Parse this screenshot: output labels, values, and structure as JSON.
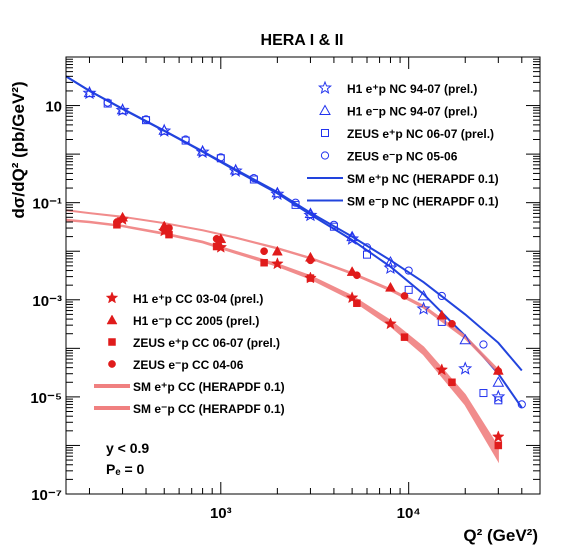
{
  "chart_data": {
    "type": "scatter",
    "title": "HERA I & II",
    "xlabel": "Q² (GeV²)",
    "ylabel": "dσ/dQ² (pb/GeV²)",
    "xscale": "log",
    "yscale": "log",
    "xlim": [
      150,
      50000
    ],
    "ylim": [
      1e-07,
      100
    ],
    "x_ticks": [
      {
        "value": 1000,
        "label": "10³"
      },
      {
        "value": 10000,
        "label": "10⁴"
      }
    ],
    "y_ticks": [
      {
        "value": 10,
        "label": "10"
      },
      {
        "value": 0.1,
        "label": "10⁻¹"
      },
      {
        "value": 0.001,
        "label": "10⁻³"
      },
      {
        "value": 1e-05,
        "label": "10⁻⁵"
      },
      {
        "value": 1e-07,
        "label": "10⁻⁷"
      }
    ],
    "legend_top": "top-right",
    "legend_bottom": "bottom-left",
    "annotations": [
      "y < 0.9",
      "Pₑ = 0"
    ],
    "series": [
      {
        "name": "H1 e⁺p NC 94-07 (prel.)",
        "group": "nc",
        "marker": "star-open",
        "color": "#2233ee",
        "x": [
          200,
          300,
          500,
          800,
          1200,
          2000,
          3000,
          5000,
          8000,
          12000,
          20000,
          30000
        ],
        "y": [
          18,
          8,
          3.0,
          1.1,
          0.45,
          0.15,
          0.055,
          0.018,
          0.0045,
          0.00065,
          3.8e-05,
          1e-05
        ]
      },
      {
        "name": "H1 e⁻p NC 94-07 (prel.)",
        "group": "nc",
        "marker": "triangle-open",
        "color": "#2233ee",
        "x": [
          200,
          300,
          500,
          800,
          1200,
          2000,
          3000,
          5000,
          8000,
          12000,
          20000,
          30000
        ],
        "y": [
          18.5,
          8.2,
          3.1,
          1.15,
          0.47,
          0.16,
          0.06,
          0.02,
          0.006,
          0.0012,
          0.00015,
          2e-05
        ]
      },
      {
        "name": "ZEUS e⁺p NC 06-07 (prel.)",
        "group": "nc",
        "marker": "square-open",
        "color": "#2233ee",
        "x": [
          250,
          400,
          650,
          1000,
          1500,
          2500,
          4000,
          6000,
          10000,
          15000,
          25000,
          30000
        ],
        "y": [
          11,
          5,
          1.9,
          0.82,
          0.3,
          0.09,
          0.032,
          0.0085,
          0.0016,
          0.00035,
          1.2e-05,
          8.5e-06
        ]
      },
      {
        "name": "ZEUS e⁻p NC 05-06",
        "group": "nc",
        "marker": "circle-open",
        "color": "#2233ee",
        "x": [
          250,
          400,
          650,
          1000,
          1500,
          2500,
          4000,
          6000,
          10000,
          15000,
          25000,
          40000
        ],
        "y": [
          11.5,
          5.2,
          2.0,
          0.86,
          0.32,
          0.1,
          0.035,
          0.012,
          0.004,
          0.0012,
          0.00012,
          7e-06
        ]
      },
      {
        "name": "SM e⁺p NC (HERAPDF 0.1)",
        "group": "nc",
        "marker": "line",
        "color": "#2244dd",
        "x": [
          150,
          200,
          300,
          500,
          800,
          1200,
          2000,
          3000,
          5000,
          8000,
          12000,
          20000,
          30000,
          40000
        ],
        "y": [
          40,
          20,
          8.5,
          3.0,
          1.12,
          0.46,
          0.155,
          0.057,
          0.017,
          0.0048,
          0.0013,
          0.00018,
          3e-05,
          6e-06
        ]
      },
      {
        "name": "SM e⁻p NC (HERAPDF 0.1)",
        "group": "nc",
        "marker": "line",
        "color": "#2244dd",
        "x": [
          150,
          200,
          300,
          500,
          800,
          1200,
          2000,
          3000,
          5000,
          8000,
          12000,
          20000,
          30000,
          40000
        ],
        "y": [
          40,
          20,
          8.6,
          3.05,
          1.15,
          0.48,
          0.165,
          0.062,
          0.02,
          0.0065,
          0.0023,
          0.0005,
          0.00013,
          3.5e-05
        ]
      },
      {
        "name": "H1 e⁺p CC 03-04 (prel.)",
        "group": "cc",
        "marker": "star-filled",
        "color": "#e01b1b",
        "x": [
          300,
          500,
          1000,
          2000,
          3000,
          5000,
          8000,
          15000,
          30000
        ],
        "y": [
          0.045,
          0.026,
          0.012,
          0.0055,
          0.0028,
          0.0011,
          0.00032,
          3.6e-05,
          1.5e-06
        ]
      },
      {
        "name": "H1 e⁻p CC 2005 (prel.)",
        "group": "cc",
        "marker": "triangle-filled",
        "color": "#e01b1b",
        "x": [
          300,
          500,
          1000,
          2000,
          3000,
          5000,
          8000,
          15000,
          30000
        ],
        "y": [
          0.05,
          0.033,
          0.018,
          0.01,
          0.0075,
          0.0038,
          0.0018,
          0.00048,
          3.5e-05
        ]
      },
      {
        "name": "ZEUS e⁺p CC 06-07 (prel.)",
        "group": "cc",
        "marker": "square-filled",
        "color": "#e01b1b",
        "x": [
          280,
          530,
          950,
          1700,
          3000,
          5300,
          9500,
          17000,
          30000
        ],
        "y": [
          0.035,
          0.022,
          0.0125,
          0.0058,
          0.0028,
          0.00085,
          0.00017,
          2e-05,
          1e-06
        ]
      },
      {
        "name": "ZEUS e⁻p CC 04-06",
        "group": "cc",
        "marker": "circle-filled",
        "color": "#e01b1b",
        "x": [
          280,
          530,
          950,
          1700,
          3000,
          5300,
          9500,
          17000,
          30000
        ],
        "y": [
          0.04,
          0.03,
          0.018,
          0.01,
          0.0065,
          0.0032,
          0.0012,
          0.00032,
          3.4e-05
        ]
      },
      {
        "name": "SM e⁺p CC (HERAPDF 0.1)",
        "group": "cc",
        "marker": "band",
        "color": "#f08080",
        "x": [
          150,
          200,
          300,
          500,
          800,
          1200,
          2000,
          3000,
          5000,
          8000,
          12000,
          20000,
          30000
        ],
        "y": [
          0.044,
          0.04,
          0.033,
          0.023,
          0.0155,
          0.0095,
          0.0052,
          0.0029,
          0.0011,
          0.00033,
          9e-05,
          9e-06,
          7e-07
        ],
        "band_width": [
          0.03,
          0.03,
          0.03,
          0.035,
          0.04,
          0.05,
          0.06,
          0.08,
          0.1,
          0.14,
          0.18,
          0.24,
          0.32
        ]
      },
      {
        "name": "SM e⁻p CC (HERAPDF 0.1)",
        "group": "cc",
        "marker": "band",
        "color": "#f08080",
        "x": [
          150,
          200,
          300,
          500,
          800,
          1200,
          2000,
          3000,
          5000,
          8000,
          12000,
          20000,
          30000
        ],
        "y": [
          0.07,
          0.061,
          0.051,
          0.038,
          0.027,
          0.019,
          0.0115,
          0.0072,
          0.0035,
          0.0016,
          0.00072,
          0.00017,
          3.4e-05
        ],
        "band_width": [
          0.02,
          0.02,
          0.02,
          0.02,
          0.02,
          0.025,
          0.03,
          0.03,
          0.04,
          0.05,
          0.06,
          0.07,
          0.08
        ]
      }
    ]
  }
}
